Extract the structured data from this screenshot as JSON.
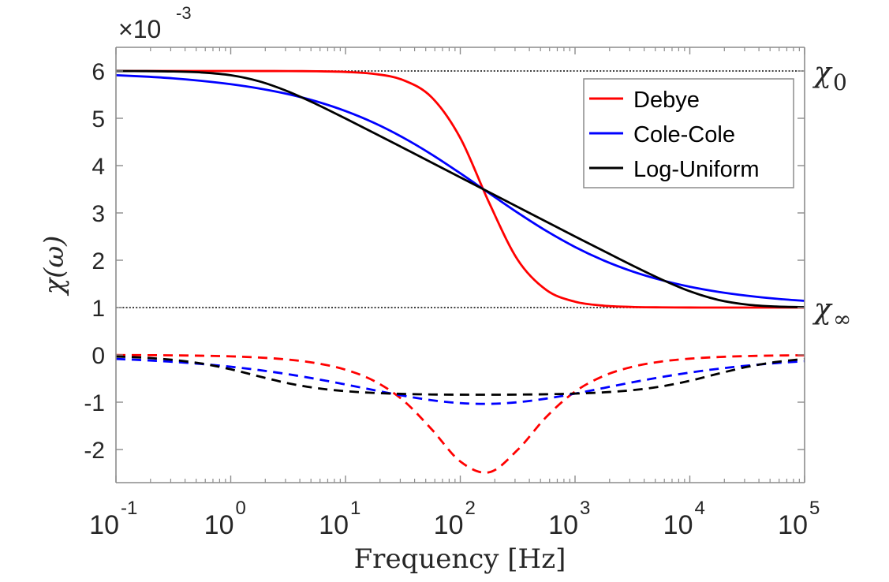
{
  "chart_data": {
    "type": "line",
    "title": "",
    "xlabel": "Frequency [Hz]",
    "ylabel": "χ(ω)",
    "xscale": "log",
    "xlim": [
      0.1,
      100000
    ],
    "ylim": [
      -2.7,
      6.5
    ],
    "y_multiplier": "×10^-3",
    "y_multiplier_base": "×10",
    "y_multiplier_exp": "-3",
    "grid": false,
    "legend_position": "top-right",
    "x_ticks": [
      {
        "base": "10",
        "exp": "-1",
        "value": 0.1
      },
      {
        "base": "10",
        "exp": "0",
        "value": 1
      },
      {
        "base": "10",
        "exp": "1",
        "value": 10
      },
      {
        "base": "10",
        "exp": "2",
        "value": 100
      },
      {
        "base": "10",
        "exp": "3",
        "value": 1000
      },
      {
        "base": "10",
        "exp": "4",
        "value": 10000
      },
      {
        "base": "10",
        "exp": "5",
        "value": 100000
      }
    ],
    "y_ticks": [
      {
        "label": "6",
        "value": 6
      },
      {
        "label": "5",
        "value": 5
      },
      {
        "label": "4",
        "value": 4
      },
      {
        "label": "3",
        "value": 3
      },
      {
        "label": "2",
        "value": 2
      },
      {
        "label": "1",
        "value": 1
      },
      {
        "label": "0",
        "value": 0
      },
      {
        "label": "-1",
        "value": -1
      },
      {
        "label": "-2",
        "value": -2
      }
    ],
    "reference_lines": [
      {
        "name": "chi-0",
        "value": 6,
        "label_symbol": "χ",
        "label_sub": "0",
        "color": "#000000",
        "style": "dotted"
      },
      {
        "name": "chi-inf",
        "value": 1,
        "label_symbol": "χ",
        "label_sub": "∞",
        "color": "#000000",
        "style": "dotted"
      }
    ],
    "log10_frequency": [
      -1,
      -0.75,
      -0.5,
      -0.25,
      0,
      0.25,
      0.5,
      0.75,
      1,
      1.25,
      1.5,
      1.75,
      2,
      2.25,
      2.5,
      2.75,
      3,
      3.25,
      3.5,
      3.75,
      4,
      4.25,
      4.5,
      4.75,
      5
    ],
    "series": [
      {
        "name": "Debye",
        "color": "#ff0000",
        "real": [
          6.0,
          6.0,
          6.0,
          6.0,
          6.0,
          5.999,
          5.998,
          5.994,
          5.98,
          5.938,
          5.81,
          5.445,
          4.585,
          3.223,
          2.01,
          1.371,
          1.124,
          1.04,
          1.013,
          1.004,
          1.001,
          1.0,
          1.0,
          1.0,
          1.0
        ],
        "imag": [
          -0.003,
          -0.006,
          -0.01,
          -0.018,
          -0.031,
          -0.056,
          -0.099,
          -0.177,
          -0.313,
          -0.552,
          -0.956,
          -1.571,
          -2.252,
          -2.482,
          -2.007,
          -1.31,
          -0.776,
          -0.444,
          -0.251,
          -0.141,
          -0.08,
          -0.045,
          -0.025,
          -0.014,
          -0.008
        ]
      },
      {
        "name": "Cole-Cole",
        "color": "#0000ff",
        "real": [
          5.91,
          5.882,
          5.844,
          5.79,
          5.721,
          5.63,
          5.511,
          5.354,
          5.153,
          4.902,
          4.595,
          4.237,
          3.838,
          3.419,
          3.005,
          2.619,
          2.28,
          1.995,
          1.764,
          1.582,
          1.44,
          1.332,
          1.25,
          1.187,
          1.141
        ],
        "imag": [
          -0.086,
          -0.113,
          -0.148,
          -0.193,
          -0.251,
          -0.322,
          -0.409,
          -0.511,
          -0.625,
          -0.746,
          -0.862,
          -0.958,
          -1.019,
          -1.035,
          -1.001,
          -0.924,
          -0.819,
          -0.699,
          -0.58,
          -0.47,
          -0.374,
          -0.293,
          -0.227,
          -0.174,
          -0.133
        ]
      },
      {
        "name": "Log-Uniform",
        "color": "#000000",
        "real": [
          5.999,
          5.997,
          5.989,
          5.968,
          5.91,
          5.78,
          5.566,
          5.294,
          4.995,
          4.688,
          4.377,
          4.065,
          3.752,
          3.44,
          3.127,
          2.815,
          2.503,
          2.195,
          1.889,
          1.598,
          1.344,
          1.161,
          1.063,
          1.022,
          1.008
        ],
        "imag": [
          -0.034,
          -0.06,
          -0.107,
          -0.184,
          -0.305,
          -0.456,
          -0.6,
          -0.703,
          -0.767,
          -0.804,
          -0.825,
          -0.837,
          -0.841,
          -0.842,
          -0.839,
          -0.832,
          -0.818,
          -0.792,
          -0.746,
          -0.668,
          -0.548,
          -0.396,
          -0.253,
          -0.15,
          -0.086
        ]
      }
    ],
    "legend": [
      {
        "label": "Debye",
        "color": "#ff0000"
      },
      {
        "label": "Cole-Cole",
        "color": "#0000ff"
      },
      {
        "label": "Log-Uniform",
        "color": "#000000"
      }
    ],
    "line_styles": {
      "real": "solid",
      "imag": "dashed"
    }
  },
  "colors": {
    "axis": "#8c8c8c",
    "text": "#262626"
  }
}
